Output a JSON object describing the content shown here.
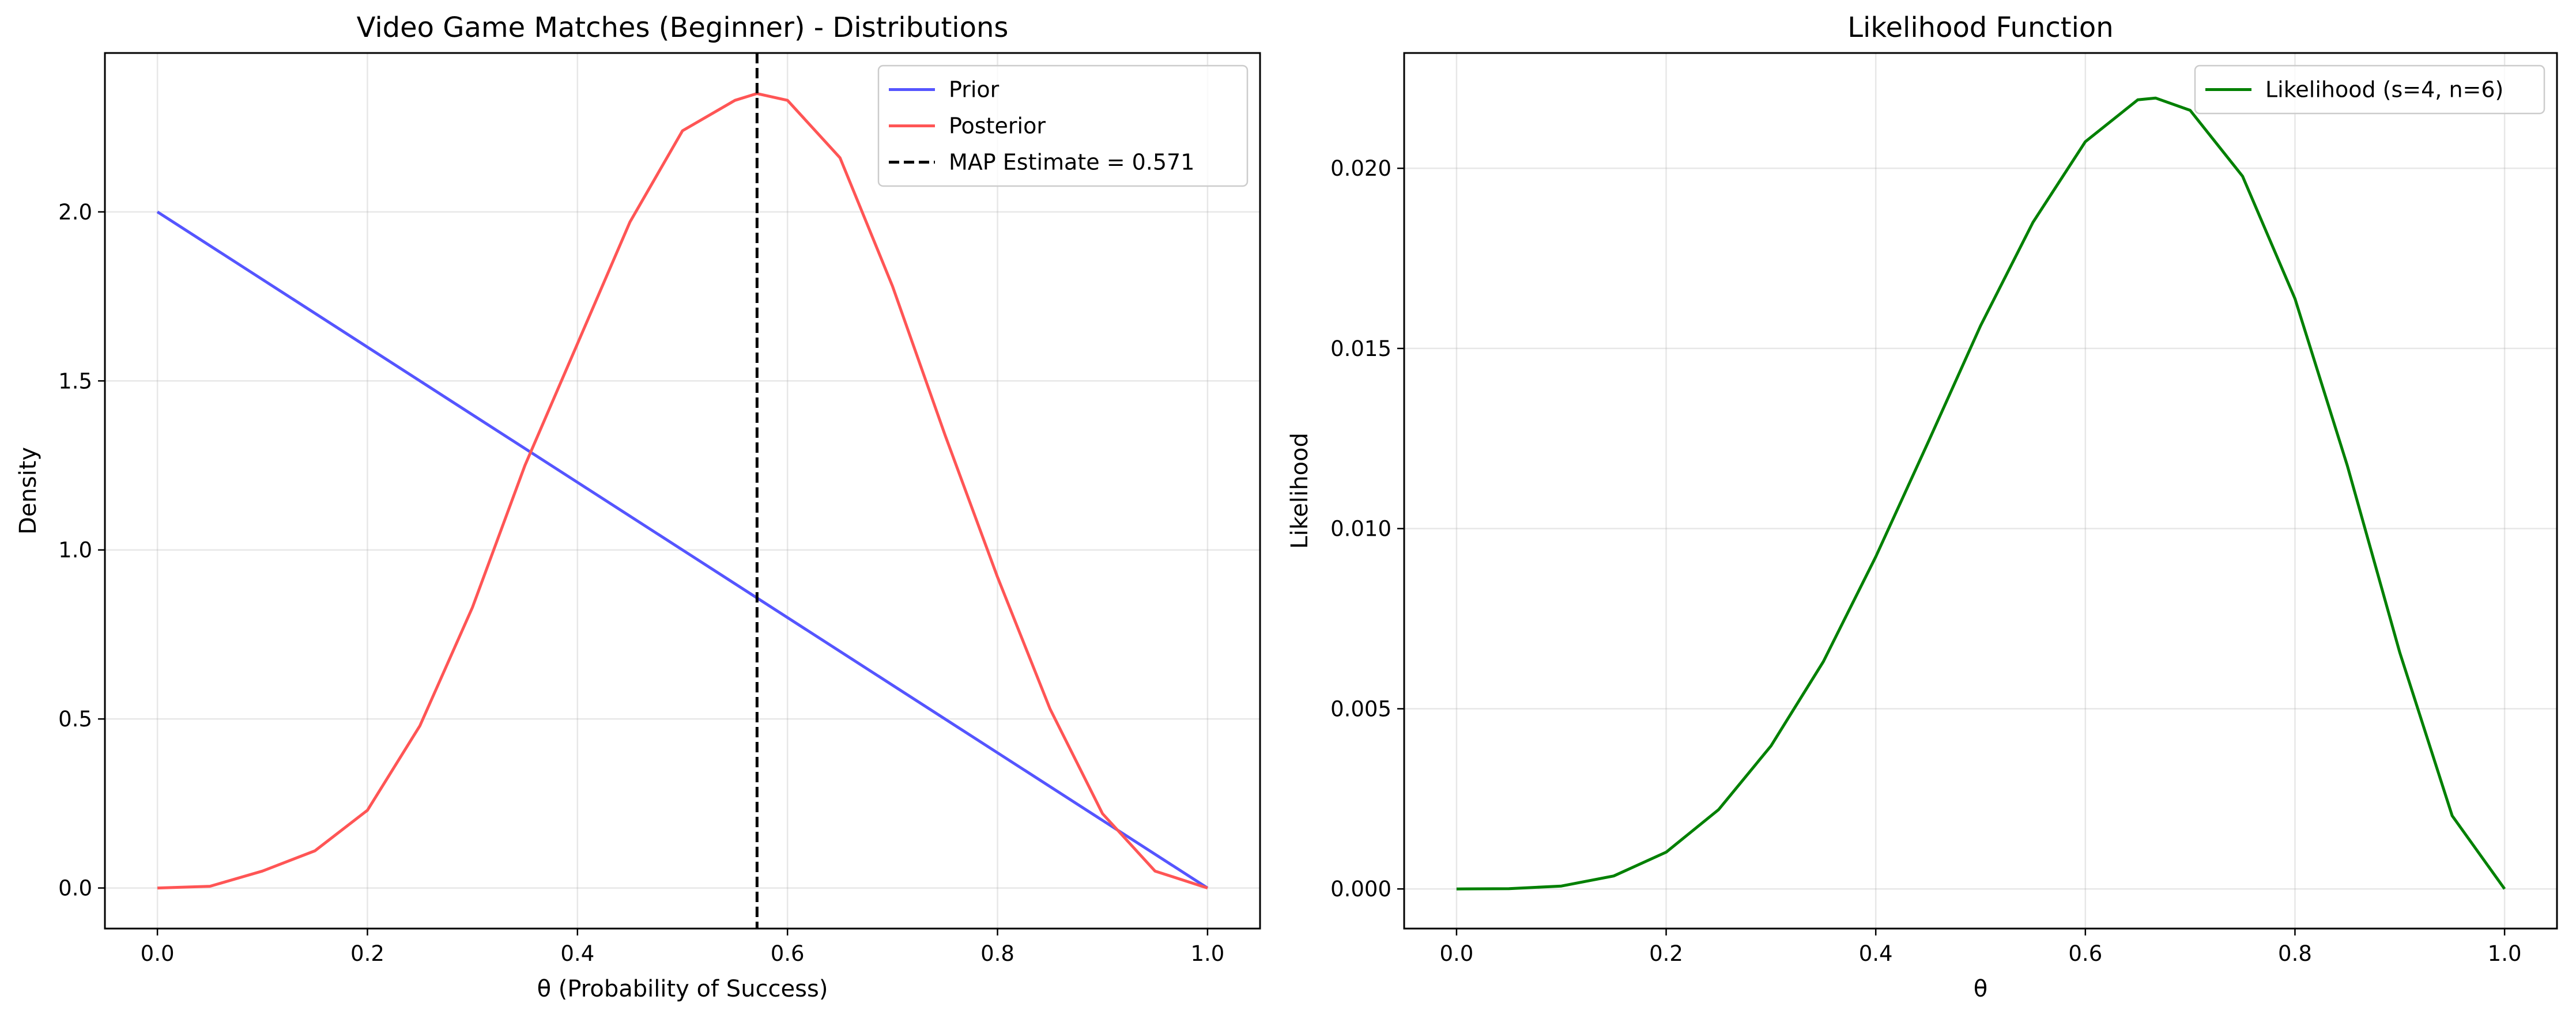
{
  "chart_data": [
    {
      "type": "line",
      "title": "Video Game Matches (Beginner) - Distributions",
      "xlabel": "θ (Probability of Success)",
      "ylabel": "Density",
      "xlim": [
        -0.05,
        1.05
      ],
      "ylim": [
        -0.12,
        2.47
      ],
      "xticks": [
        0.0,
        0.2,
        0.4,
        0.6,
        0.8,
        1.0
      ],
      "xtick_labels": [
        "0.0",
        "0.2",
        "0.4",
        "0.6",
        "0.8",
        "1.0"
      ],
      "yticks": [
        0.0,
        0.5,
        1.0,
        1.5,
        2.0
      ],
      "ytick_labels": [
        "0.0",
        "0.5",
        "1.0",
        "1.5",
        "2.0"
      ],
      "grid": true,
      "legend_position": "top-right",
      "series": [
        {
          "name": "Prior",
          "color": "#5555ff",
          "style": "solid",
          "x": [
            0.0,
            0.1,
            0.2,
            0.3,
            0.4,
            0.5,
            0.6,
            0.7,
            0.8,
            0.9,
            1.0
          ],
          "y": [
            2.0,
            1.8,
            1.6,
            1.4,
            1.2,
            1.0,
            0.8,
            0.6,
            0.4,
            0.2,
            0.0
          ]
        },
        {
          "name": "Posterior",
          "color": "#ff5555",
          "style": "solid",
          "x": [
            0.0,
            0.05,
            0.1,
            0.15,
            0.2,
            0.25,
            0.3,
            0.35,
            0.4,
            0.45,
            0.5,
            0.55,
            0.571,
            0.6,
            0.65,
            0.7,
            0.75,
            0.8,
            0.85,
            0.9,
            0.95,
            1.0
          ],
          "y": [
            0.0,
            0.005,
            0.05,
            0.11,
            0.23,
            0.48,
            0.83,
            1.25,
            1.61,
            1.97,
            2.24,
            2.33,
            2.35,
            2.33,
            2.16,
            1.78,
            1.34,
            0.92,
            0.53,
            0.22,
            0.05,
            0.0
          ]
        },
        {
          "name": "MAP Estimate = 0.571",
          "color": "#000000",
          "style": "dashed",
          "vline_x": 0.571
        }
      ]
    },
    {
      "type": "line",
      "title": "Likelihood Function",
      "xlabel": "θ",
      "ylabel": "Likelihood",
      "xlim": [
        -0.05,
        1.05
      ],
      "ylim": [
        -0.0011,
        0.0232
      ],
      "xticks": [
        0.0,
        0.2,
        0.4,
        0.6,
        0.8,
        1.0
      ],
      "xtick_labels": [
        "0.0",
        "0.2",
        "0.4",
        "0.6",
        "0.8",
        "1.0"
      ],
      "yticks": [
        0.0,
        0.005,
        0.01,
        0.015,
        0.02
      ],
      "ytick_labels": [
        "0.000",
        "0.005",
        "0.010",
        "0.015",
        "0.020"
      ],
      "grid": true,
      "legend_position": "top-right",
      "series": [
        {
          "name": "Likelihood (s=4, n=6)",
          "color": "#008000",
          "style": "solid",
          "x": [
            0.0,
            0.05,
            0.1,
            0.15,
            0.2,
            0.25,
            0.3,
            0.35,
            0.4,
            0.45,
            0.5,
            0.55,
            0.6,
            0.65,
            0.667,
            0.7,
            0.75,
            0.8,
            0.85,
            0.9,
            0.95,
            1.0
          ],
          "y": [
            0.0,
            6e-06,
            8e-05,
            0.00036,
            0.00102,
            0.0022,
            0.00397,
            0.00631,
            0.00922,
            0.0124,
            0.01563,
            0.0185,
            0.02074,
            0.0219,
            0.02195,
            0.02161,
            0.01978,
            0.01638,
            0.01174,
            0.00656,
            0.00203,
            0.0
          ]
        }
      ]
    }
  ]
}
